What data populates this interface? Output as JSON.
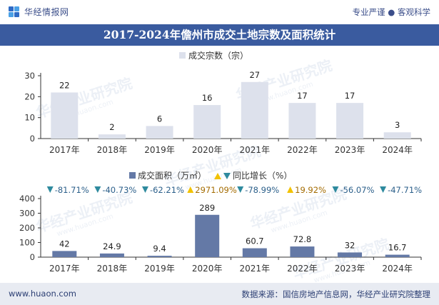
{
  "header": {
    "brand_name": "华经情报网",
    "slogan": "专业严谨 ● 客观科学",
    "title": "2017-2024年儋州市成交土地宗数及面积统计"
  },
  "footer": {
    "site": "www.huaon.com",
    "source": "数据来源：国信房地产信息网，华经产业研究院整理"
  },
  "watermark": {
    "text": "华经产业研究院",
    "url_text": "www.huaon.com"
  },
  "colors": {
    "title_bg": "#3a5b9f",
    "bar_top": "#dde1ec",
    "bar_bottom": "#6479a6",
    "down_marker": "#2e8a9e",
    "up_marker": "#f2c200",
    "axis": "#333333",
    "footer_bg": "#e8ebf2"
  },
  "chart_data": [
    {
      "type": "bar",
      "legend": "成交宗数（宗）",
      "categories": [
        "2017年",
        "2018年",
        "2019年",
        "2020年",
        "2021年",
        "2022年",
        "2023年",
        "2024年"
      ],
      "values": [
        22,
        2,
        6,
        16,
        27,
        17,
        17,
        3
      ],
      "value_labels": [
        "22",
        "2",
        "6",
        "16",
        "27",
        "17",
        "17",
        "3"
      ],
      "yticks": [
        "0",
        "10",
        "20",
        "30"
      ],
      "ylim": [
        0,
        30
      ],
      "grid": false
    },
    {
      "type": "bar",
      "legend": "成交面积（万㎡）",
      "legend2": "同比增长（%）",
      "categories": [
        "2017年",
        "2018年",
        "2019年",
        "2020年",
        "2021年",
        "2022年",
        "2023年",
        "2024年"
      ],
      "values": [
        42,
        24.9,
        9.4,
        289,
        60.7,
        72.8,
        32,
        16.7
      ],
      "value_labels": [
        "42",
        "24.9",
        "9.4",
        "289",
        "60.7",
        "72.8",
        "32",
        "16.7"
      ],
      "yoy": [
        -81.71,
        -40.73,
        -62.21,
        2971.09,
        -78.99,
        19.92,
        -56.07,
        -47.71
      ],
      "yoy_labels": [
        "-81.71%",
        "-40.73%",
        "-62.21%",
        "2971.09%",
        "-78.99%",
        "19.92%",
        "-56.07%",
        "-47.71%"
      ],
      "yticks": [
        "0",
        "100",
        "200",
        "300",
        "400"
      ],
      "ylim": [
        0,
        400
      ],
      "grid": false
    }
  ]
}
